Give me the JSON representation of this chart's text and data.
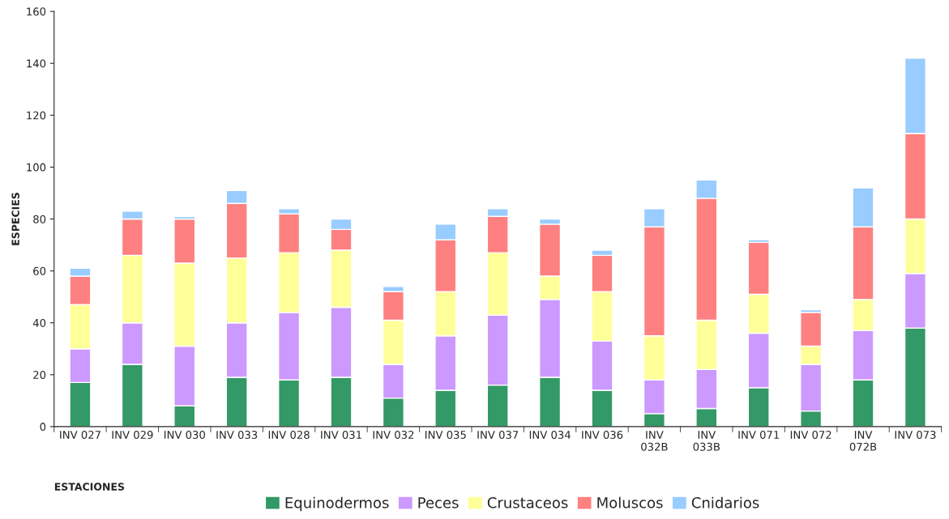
{
  "chart_data": {
    "type": "bar",
    "stacked": true,
    "xlabel": "ESTACIONES",
    "ylabel": "ESPECIES",
    "categories": [
      "INV 027",
      "INV 029",
      "INV 030",
      "INV 033",
      "INV 028",
      "INV 031",
      "INV 032",
      "INV 035",
      "INV 037",
      "INV 034",
      "INV 036",
      "INV 032B",
      "INV 033B",
      "INV 071",
      "INV 072",
      "INV 072B",
      "INV 073"
    ],
    "series": [
      {
        "name": "Equinodermos",
        "color": "#339966",
        "values": [
          17,
          24,
          8,
          19,
          18,
          19,
          11,
          14,
          16,
          19,
          14,
          5,
          7,
          15,
          6,
          18,
          38
        ]
      },
      {
        "name": "Peces",
        "color": "#cc99ff",
        "values": [
          13,
          16,
          23,
          21,
          26,
          27,
          13,
          21,
          27,
          30,
          19,
          13,
          15,
          21,
          18,
          19,
          21
        ]
      },
      {
        "name": "Crustaceos",
        "color": "#ffff99",
        "values": [
          17,
          26,
          32,
          25,
          23,
          22,
          17,
          17,
          24,
          9,
          19,
          17,
          19,
          15,
          7,
          12,
          21
        ]
      },
      {
        "name": "Moluscos",
        "color": "#ff8080",
        "values": [
          11,
          14,
          17,
          21,
          15,
          8,
          11,
          20,
          14,
          20,
          14,
          42,
          47,
          20,
          13,
          28,
          33
        ]
      },
      {
        "name": "Cnidarios",
        "color": "#99ccff",
        "values": [
          3,
          3,
          1,
          5,
          2,
          4,
          2,
          6,
          3,
          2,
          2,
          7,
          7,
          1,
          1,
          15,
          29
        ]
      }
    ],
    "ylim": [
      0,
      160
    ],
    "yticks": [
      0,
      20,
      40,
      60,
      80,
      100,
      120,
      140,
      160
    ],
    "grid": false,
    "legend": "bottom"
  }
}
